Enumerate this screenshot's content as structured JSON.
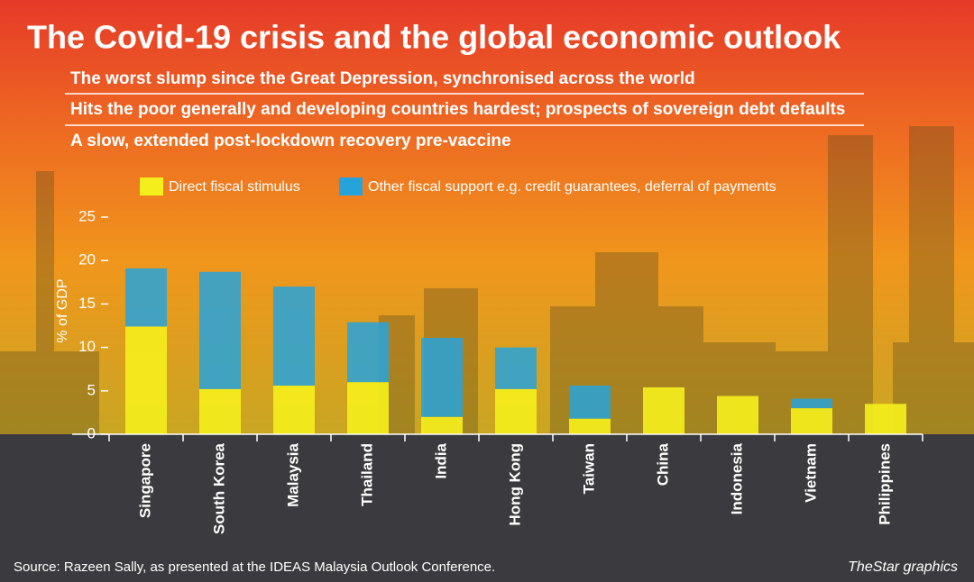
{
  "chart_data": {
    "type": "stacked_bar",
    "title": "The Covid-19 crisis and the global economic outlook",
    "subtitles": [
      "The worst slump since the Great Depression, synchronised across the world",
      "Hits the poor generally and developing countries hardest; prospects of sovereign debt defaults",
      "A slow, extended post-lockdown recovery pre-vaccine"
    ],
    "y_label": "% of GDP",
    "categories": [
      "Singapore",
      "South Korea",
      "Malaysia",
      "Thailand",
      "India",
      "Hong Kong",
      "Taiwan",
      "China",
      "Indonesia",
      "Vietnam",
      "Philippines"
    ],
    "series": [
      {
        "name": "Direct fiscal stimulus",
        "color": "#f4ee1c",
        "values": [
          12.4,
          5.2,
          5.6,
          6.0,
          2.0,
          5.2,
          1.8,
          5.4,
          4.4,
          3.0,
          3.5
        ]
      },
      {
        "name": "Other fiscal support e.g. credit guarantees, deferral of payments",
        "color": "#27a3dc",
        "values": [
          6.7,
          13.5,
          11.4,
          6.9,
          9.1,
          4.8,
          3.8,
          0,
          0,
          1.1,
          0
        ]
      }
    ],
    "ylim": [
      0,
      25
    ],
    "yticks": [
      0,
      5,
      10,
      15,
      20,
      25
    ],
    "source": "Source: Razeen Sally, as presented at the IDEAS Malaysia Outlook Conference.",
    "credit": "TheStar graphics"
  }
}
